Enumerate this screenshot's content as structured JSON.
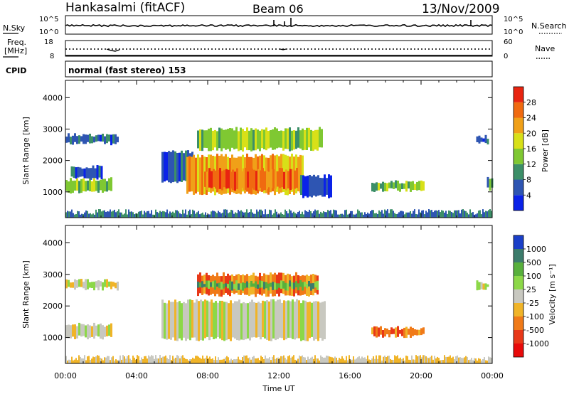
{
  "header": {
    "station": "Hankasalmi (fitACF)",
    "beam": "Beam 06",
    "date": "13/Nov/2009"
  },
  "top_panels": {
    "noise": {
      "left_label": "N.Sky",
      "right_label": "N.Search",
      "left_ticks": [
        "10^5",
        "10^0"
      ],
      "right_ticks": [
        "10^5",
        "10^0"
      ]
    },
    "freq": {
      "left_label_1": "Freq.",
      "left_label_2": "[MHz]",
      "right_label": "Nave",
      "left_ticks": [
        "18",
        "8"
      ],
      "right_ticks": [
        "60",
        "0"
      ]
    },
    "cpid": {
      "label": "CPID",
      "text": "normal (fast stereo) 153"
    }
  },
  "chart_data": [
    {
      "type": "heatmap",
      "title": "",
      "xlabel": "Time UT",
      "ylabel": "Slant Range [km]",
      "x_ticks": [
        "00:00",
        "04:00",
        "08:00",
        "12:00",
        "16:00",
        "20:00",
        "00:00"
      ],
      "y_ticks": [
        "1000",
        "2000",
        "3000",
        "4000"
      ],
      "ylim": [
        180,
        4550
      ],
      "colorbar": {
        "label": "Power [dB]",
        "ticks": [
          "4",
          "8",
          "12",
          "16",
          "20",
          "24",
          "28"
        ],
        "colors": [
          "#0a22e8",
          "#2e55b2",
          "#3c8f68",
          "#7fc832",
          "#d8e018",
          "#f0a018",
          "#f06a10",
          "#e82410"
        ]
      },
      "echo_regions": [
        {
          "t_start": 0.0,
          "t_end": 2.6,
          "r_start": 1000,
          "r_end": 1400,
          "power_db": 14
        },
        {
          "t_start": 0.3,
          "t_end": 2.0,
          "r_start": 1450,
          "r_end": 1800,
          "power_db": 8
        },
        {
          "t_start": 0.0,
          "t_end": 3.0,
          "r_start": 2550,
          "r_end": 2800,
          "power_db": 6
        },
        {
          "t_start": 5.4,
          "t_end": 7.2,
          "r_start": 1300,
          "r_end": 2300,
          "power_db": 8
        },
        {
          "t_start": 6.8,
          "t_end": 13.4,
          "r_start": 950,
          "r_end": 2150,
          "power_db": 22
        },
        {
          "t_start": 7.8,
          "t_end": 13.0,
          "r_start": 1100,
          "r_end": 1700,
          "power_db": 27
        },
        {
          "t_start": 7.4,
          "t_end": 14.4,
          "r_start": 2350,
          "r_end": 3000,
          "power_db": 16
        },
        {
          "t_start": 13.2,
          "t_end": 14.9,
          "r_start": 850,
          "r_end": 1500,
          "power_db": 8
        },
        {
          "t_start": 17.2,
          "t_end": 20.2,
          "r_start": 1050,
          "r_end": 1300,
          "power_db": 14
        },
        {
          "t_start": 23.1,
          "t_end": 23.8,
          "r_start": 2550,
          "r_end": 2750,
          "power_db": 6
        },
        {
          "t_start": 23.7,
          "t_end": 24.0,
          "r_start": 1100,
          "r_end": 1450,
          "power_db": 12
        }
      ]
    },
    {
      "type": "heatmap",
      "title": "",
      "xlabel": "Time UT",
      "ylabel": "Slant Range [km]",
      "x_ticks": [
        "00:00",
        "04:00",
        "08:00",
        "12:00",
        "16:00",
        "20:00",
        "00:00"
      ],
      "y_ticks": [
        "1000",
        "2000",
        "3000",
        "4000"
      ],
      "ylim": [
        180,
        4550
      ],
      "colorbar": {
        "label": "Velocity [m s⁻¹]",
        "ticks": [
          "1000",
          "500",
          "100",
          "25",
          "-25",
          "-100",
          "-500",
          "-1000"
        ],
        "colors": [
          "#1a3fc8",
          "#3c7c6c",
          "#58b03c",
          "#8cd848",
          "#c8c8c0",
          "#f0b428",
          "#f07a18",
          "#e83818",
          "#e80a0a"
        ]
      },
      "echo_regions": [
        {
          "t_start": 0.0,
          "t_end": 2.6,
          "r_start": 1000,
          "r_end": 1400,
          "velocity": 5
        },
        {
          "t_start": 0.0,
          "t_end": 3.0,
          "r_start": 2550,
          "r_end": 2800,
          "velocity": 0
        },
        {
          "t_start": 5.4,
          "t_end": 14.6,
          "r_start": 950,
          "r_end": 2150,
          "velocity": 0
        },
        {
          "t_start": 7.4,
          "t_end": 14.2,
          "r_start": 2350,
          "r_end": 3000,
          "velocity": -200
        },
        {
          "t_start": 7.4,
          "t_end": 14.2,
          "r_start": 2550,
          "r_end": 2750,
          "velocity": 150
        },
        {
          "t_start": 17.2,
          "t_end": 20.2,
          "r_start": 1050,
          "r_end": 1300,
          "velocity": -200
        },
        {
          "t_start": 23.1,
          "t_end": 23.8,
          "r_start": 2550,
          "r_end": 2750,
          "velocity": 0
        }
      ]
    }
  ]
}
